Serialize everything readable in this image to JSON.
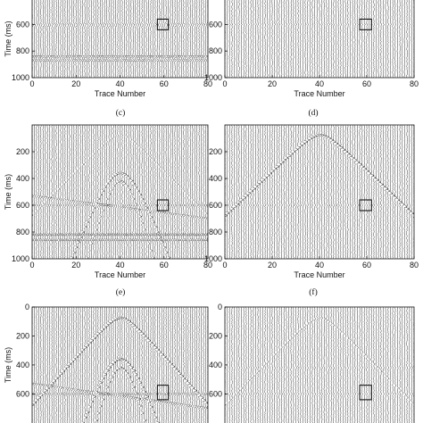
{
  "xlabel": "Trace Number",
  "ylabel": "Time (ms)",
  "captions": [
    "(c)",
    "(d)",
    "(e)",
    "(f)"
  ],
  "chart_data": [
    {
      "type": "scatter",
      "panel": "top-left",
      "x": {
        "range": [
          0,
          80
        ],
        "ticks": [
          0,
          20,
          40,
          60,
          80
        ]
      },
      "y": {
        "range": [
          1000,
          0
        ],
        "ticks": [
          600,
          800,
          1000
        ],
        "reversed": true
      },
      "events": [
        {
          "kind": "flat",
          "time": 600,
          "amplitude": 0.55
        },
        {
          "kind": "flat",
          "time": 610,
          "amplitude": 0.45
        },
        {
          "kind": "flat",
          "time": 840,
          "amplitude": 0.7
        },
        {
          "kind": "flat",
          "time": 870,
          "amplitude": 0.6
        }
      ],
      "box": {
        "x": [
          57,
          62
        ],
        "t": [
          560,
          640
        ]
      }
    },
    {
      "type": "scatter",
      "panel": "top-right",
      "x": {
        "range": [
          0,
          80
        ],
        "ticks": [
          0,
          20,
          40,
          60,
          80
        ]
      },
      "y": {
        "range": [
          1000,
          0
        ],
        "ticks": [
          600,
          800,
          1000
        ],
        "reversed": true
      },
      "events": [
        {
          "kind": "flat",
          "time": 600,
          "amplitude": 0.25
        }
      ],
      "box": {
        "x": [
          57,
          62
        ],
        "t": [
          560,
          640
        ]
      }
    },
    {
      "type": "scatter",
      "panel": "middle-left",
      "x": {
        "range": [
          0,
          80
        ],
        "ticks": [
          0,
          20,
          40,
          60,
          80
        ]
      },
      "y": {
        "range": [
          1000,
          0
        ],
        "ticks": [
          200,
          400,
          600,
          800,
          1000
        ],
        "reversed": true
      },
      "events": [
        {
          "kind": "hyperbola",
          "apex_trace": 40,
          "t0": 75,
          "v": 1.4,
          "amplitude": 0.25
        },
        {
          "kind": "hyperbola",
          "apex_trace": 40,
          "t0": 360,
          "v": 3.5,
          "amplitude": 0.75
        },
        {
          "kind": "hyperbola",
          "apex_trace": 40,
          "t0": 420,
          "v": 5.0,
          "amplitude": 0.55
        },
        {
          "kind": "dip",
          "t_start": 530,
          "t_end": 700,
          "amplitude": 0.55
        },
        {
          "kind": "flat",
          "time": 600,
          "amplitude": 0.5
        },
        {
          "kind": "flat",
          "time": 820,
          "amplitude": 0.85
        },
        {
          "kind": "flat",
          "time": 860,
          "amplitude": 0.75
        }
      ],
      "box": {
        "x": [
          57,
          62
        ],
        "t": [
          560,
          640
        ]
      }
    },
    {
      "type": "scatter",
      "panel": "middle-right",
      "x": {
        "range": [
          0,
          80
        ],
        "ticks": [
          0,
          20,
          40,
          60,
          80
        ]
      },
      "y": {
        "range": [
          1000,
          0
        ],
        "ticks": [
          200,
          400,
          600,
          800,
          1000
        ],
        "reversed": true
      },
      "events": [
        {
          "kind": "hyperbola",
          "apex_trace": 40,
          "t0": 75,
          "v": 1.4,
          "amplitude": 0.85
        },
        {
          "kind": "flat",
          "time": 600,
          "amplitude": 0.3
        }
      ],
      "box": {
        "x": [
          57,
          62
        ],
        "t": [
          560,
          640
        ]
      }
    },
    {
      "type": "scatter",
      "panel": "bottom-left",
      "x": {
        "range": [
          0,
          80
        ],
        "ticks": []
      },
      "y": {
        "range": [
          850,
          0
        ],
        "ticks": [
          0,
          200,
          400,
          600,
          800
        ],
        "reversed": true
      },
      "events": [
        {
          "kind": "hyperbola",
          "apex_trace": 40,
          "t0": 75,
          "v": 1.4,
          "amplitude": 0.85
        },
        {
          "kind": "hyperbola",
          "apex_trace": 40,
          "t0": 360,
          "v": 3.5,
          "amplitude": 0.9
        },
        {
          "kind": "hyperbola",
          "apex_trace": 40,
          "t0": 420,
          "v": 5.0,
          "amplitude": 0.75
        },
        {
          "kind": "dip",
          "t_start": 530,
          "t_end": 700,
          "amplitude": 0.6
        },
        {
          "kind": "flat",
          "time": 600,
          "amplitude": 0.6
        },
        {
          "kind": "flat",
          "time": 820,
          "amplitude": 0.8
        }
      ],
      "box": {
        "x": [
          57,
          62
        ],
        "t": [
          540,
          640
        ]
      }
    },
    {
      "type": "scatter",
      "panel": "bottom-right",
      "x": {
        "range": [
          0,
          80
        ],
        "ticks": []
      },
      "y": {
        "range": [
          850,
          0
        ],
        "ticks": [
          0,
          200,
          400,
          600,
          800
        ],
        "reversed": true
      },
      "events": [
        {
          "kind": "hyperbola",
          "apex_trace": 40,
          "t0": 75,
          "v": 1.4,
          "amplitude": 0.3
        },
        {
          "kind": "flat",
          "time": 420,
          "amplitude": 0.25
        },
        {
          "kind": "flat",
          "time": 600,
          "amplitude": 0.3
        }
      ],
      "box": {
        "x": [
          57,
          62
        ],
        "t": [
          540,
          640
        ]
      }
    }
  ]
}
